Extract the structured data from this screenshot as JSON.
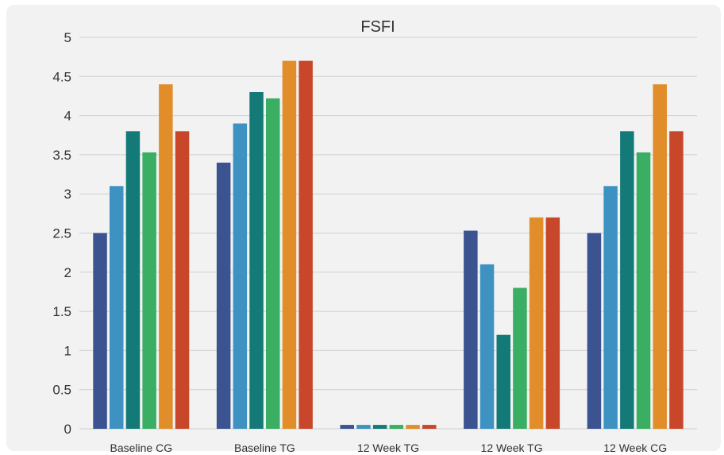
{
  "chart_data": {
    "type": "bar",
    "title": "FSFI",
    "xlabel": "",
    "ylabel": "",
    "ylim": [
      0,
      5
    ],
    "yticks": [
      "0",
      "0.5",
      "1",
      "1.5",
      "2",
      "2.5",
      "3",
      "3.5",
      "4",
      "4.5",
      "5"
    ],
    "grid": true,
    "legend": "none",
    "categories": [
      "Baseline CG",
      "Baseline TG",
      "12 Week TG",
      "12 Week TG",
      "12 Week CG"
    ],
    "series": [
      {
        "color": "#3b5391",
        "values": [
          2.5,
          3.4,
          0.05,
          2.53,
          2.5
        ]
      },
      {
        "color": "#3d92c2",
        "values": [
          3.1,
          3.9,
          0.05,
          2.1,
          3.1
        ]
      },
      {
        "color": "#147a78",
        "values": [
          3.8,
          4.3,
          0.05,
          1.2,
          3.8
        ]
      },
      {
        "color": "#3aae62",
        "values": [
          3.53,
          4.22,
          0.05,
          1.8,
          3.53
        ]
      },
      {
        "color": "#e08d2a",
        "values": [
          4.4,
          4.7,
          0.05,
          2.7,
          4.4
        ]
      },
      {
        "color": "#c8472b",
        "values": [
          3.8,
          4.7,
          0.05,
          2.7,
          3.8
        ]
      }
    ]
  }
}
